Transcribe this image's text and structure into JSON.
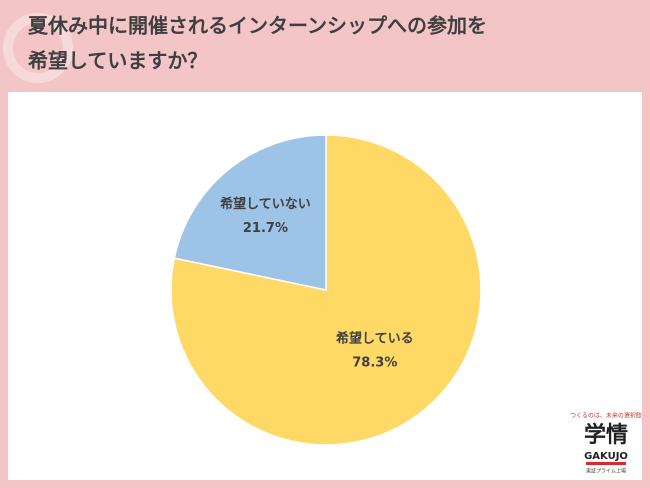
{
  "chart_data": {
    "type": "pie",
    "title": [
      "夏休み中に開催されるインターンシップへの参加を",
      "希望していますか？"
    ],
    "categories": [
      "希望している",
      "希望していない"
    ],
    "values": [
      78.3,
      21.7
    ],
    "value_labels": [
      "78.3%",
      "21.7%"
    ],
    "colors": [
      "#FFD966",
      "#9DC3E6"
    ]
  },
  "logo": {
    "tagline": "つくるのは、未来の選択肢",
    "name": "学情",
    "romaji": "GAKUJO",
    "listing": "東証プライム上場"
  }
}
